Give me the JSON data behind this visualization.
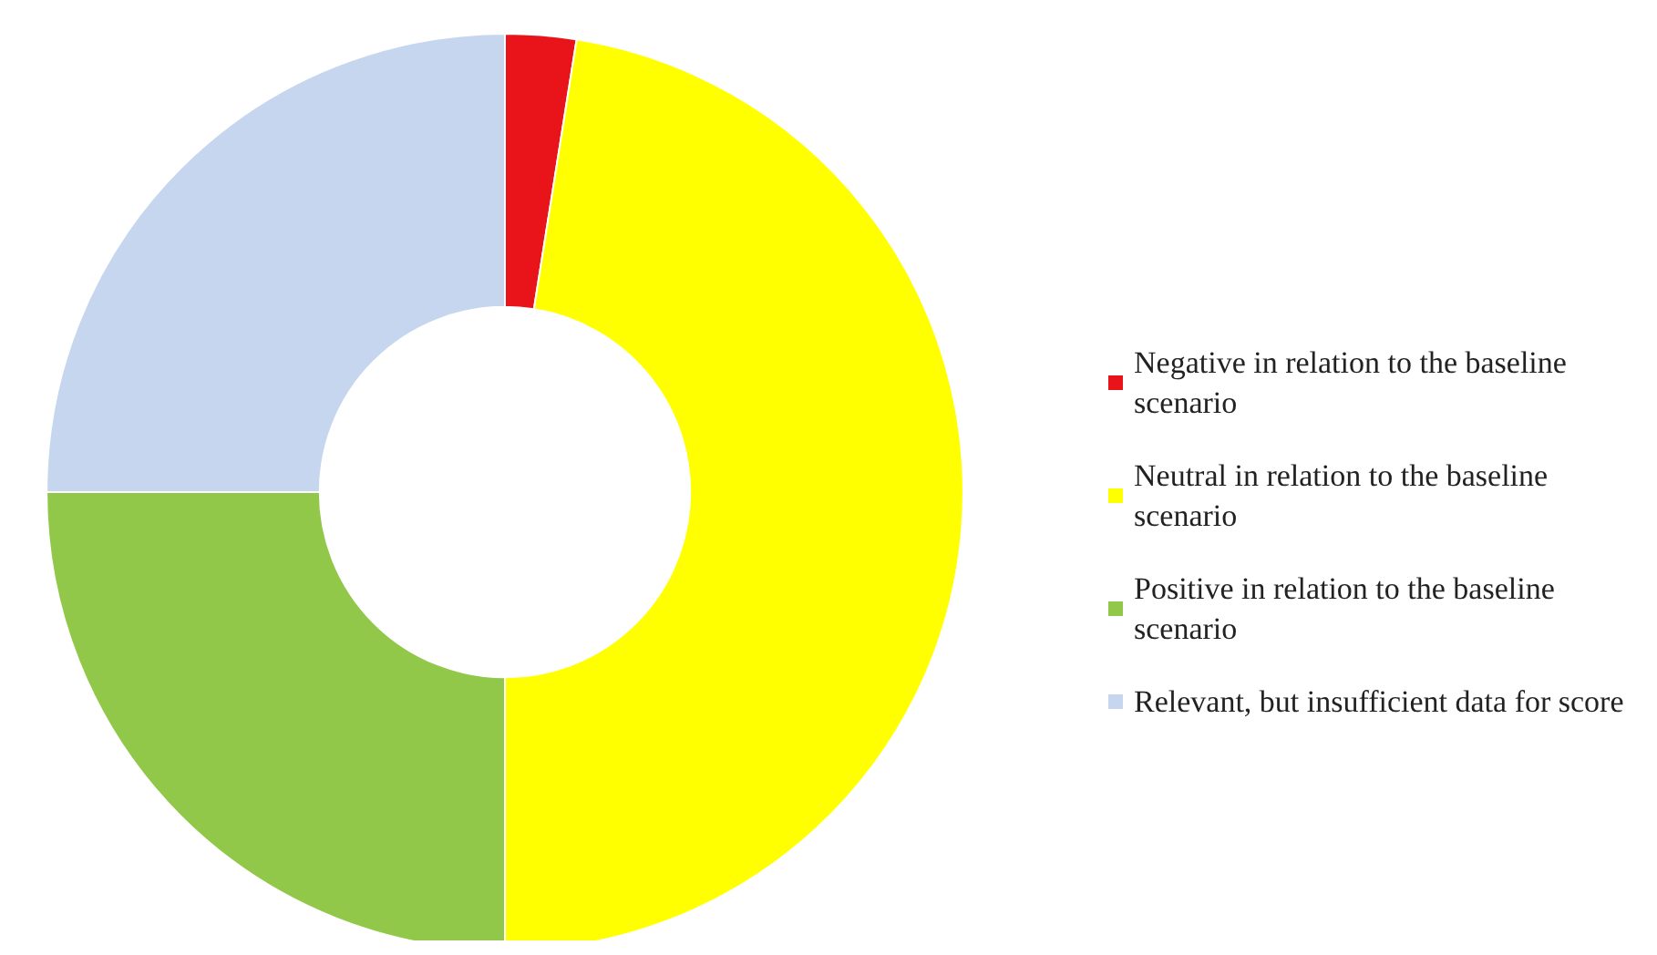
{
  "chart_data": {
    "type": "donut",
    "categories": [
      "Negative in relation to the baseline scenario",
      "Neutral in relation to the baseline scenario",
      "Positive in relation to the baseline scenario",
      "Relevant, but insufficient data for score"
    ],
    "values": [
      2.5,
      47.5,
      25,
      25
    ],
    "colors": [
      "#e8141a",
      "#ffff00",
      "#92c84a",
      "#c5d6ee"
    ],
    "legend": "right"
  }
}
